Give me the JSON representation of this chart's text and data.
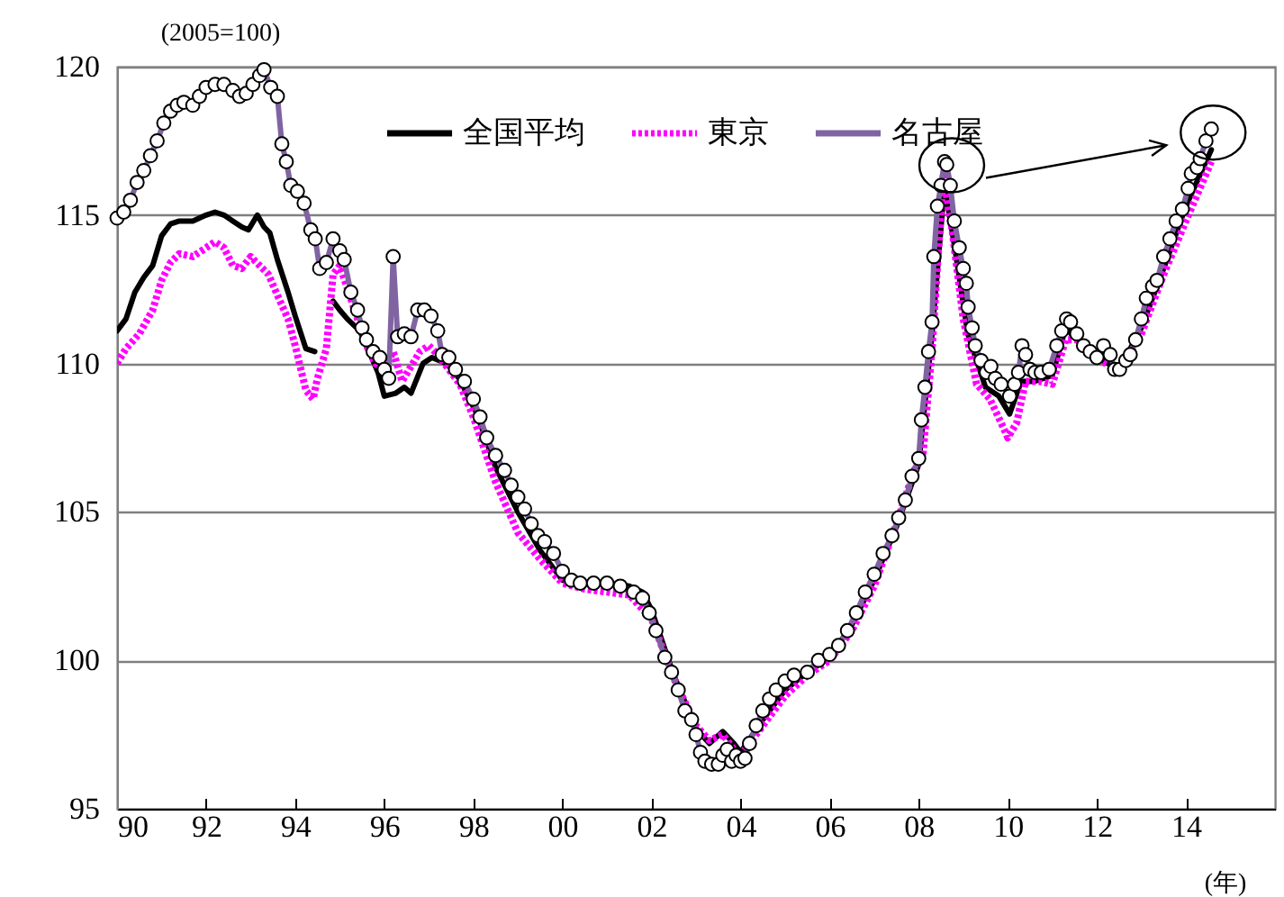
{
  "chart_data": {
    "type": "line",
    "ylabel": "(2005=100)",
    "xlabel": "(年)",
    "xlim": [
      1990,
      2016
    ],
    "ylim": [
      95,
      120
    ],
    "xticks": [
      {
        "value": 1990,
        "label": "90"
      },
      {
        "value": 1992,
        "label": "92"
      },
      {
        "value": 1994,
        "label": "94"
      },
      {
        "value": 1996,
        "label": "96"
      },
      {
        "value": 1998,
        "label": "98"
      },
      {
        "value": 2000,
        "label": "00"
      },
      {
        "value": 2002,
        "label": "02"
      },
      {
        "value": 2004,
        "label": "04"
      },
      {
        "value": 2006,
        "label": "06"
      },
      {
        "value": 2008,
        "label": "08"
      },
      {
        "value": 2010,
        "label": "10"
      },
      {
        "value": 2012,
        "label": "12"
      },
      {
        "value": 2014,
        "label": "14"
      }
    ],
    "yticks": [
      95,
      100,
      105,
      110,
      115,
      120
    ],
    "grid": "y",
    "legend": "top",
    "series": [
      {
        "name": "全国平均",
        "color": "#000000",
        "line_style": "solid",
        "marker": "none",
        "x": [
          1990.0,
          1990.2,
          1990.4,
          1990.6,
          1990.8,
          1991.0,
          1991.2,
          1991.4,
          1991.7,
          1992.0,
          1992.2,
          1992.4,
          1992.6,
          1992.8,
          1992.95,
          1993.15,
          1993.3,
          1993.43,
          1993.6,
          1993.84,
          1994.0,
          1994.24,
          1994.44,
          1994.6,
          1994.85,
          1995.0,
          1995.17,
          1995.45,
          1995.66,
          1995.86,
          1996.0,
          1996.26,
          1996.45,
          1996.6,
          1996.87,
          1997.07,
          1997.4,
          1997.68,
          1998.08,
          1998.5,
          1999.0,
          1999.5,
          2000.0,
          2000.5,
          2001.0,
          2001.5,
          2001.8,
          2002.0,
          2002.5,
          2003.0,
          2003.3,
          2003.6,
          2003.85,
          2004.0,
          2004.5,
          2005.0,
          2005.5,
          2006.0,
          2006.5,
          2007.0,
          2007.5,
          2008.0,
          2008.3,
          2008.58,
          2008.8,
          2009.1,
          2009.5,
          2009.8,
          2010.04,
          2010.3,
          2010.6,
          2011.0,
          2011.3,
          2011.6,
          2012.0,
          2012.5,
          2013.0,
          2013.5,
          2014.0,
          2014.57
        ],
        "values": [
          111.1,
          111.5,
          112.4,
          112.9,
          113.3,
          114.3,
          114.7,
          114.8,
          114.8,
          115.0,
          115.1,
          115.0,
          114.8,
          114.6,
          114.5,
          115.0,
          114.6,
          114.4,
          113.5,
          112.4,
          111.6,
          110.5,
          110.4,
          null,
          112.1,
          111.8,
          111.5,
          111.1,
          110.4,
          109.7,
          108.9,
          109.0,
          109.2,
          109.0,
          110.0,
          110.2,
          110.0,
          109.5,
          108.3,
          106.5,
          105.0,
          103.7,
          102.7,
          102.6,
          102.6,
          102.5,
          102.3,
          101.7,
          99.5,
          97.7,
          97.2,
          97.6,
          97.2,
          96.9,
          98.0,
          99.0,
          99.6,
          100.1,
          101.2,
          102.7,
          104.5,
          106.6,
          111.0,
          116.0,
          114.0,
          111.0,
          109.2,
          108.9,
          108.3,
          109.4,
          109.4,
          109.6,
          111.2,
          110.7,
          110.2,
          109.8,
          111.2,
          113.2,
          115.3,
          117.2
        ]
      },
      {
        "name": "東京",
        "color": "#ff00ff",
        "line_style": "dotted",
        "marker": "none",
        "x": [
          1990.0,
          1990.2,
          1990.5,
          1990.8,
          1991.0,
          1991.2,
          1991.4,
          1991.7,
          1992.0,
          1992.2,
          1992.4,
          1992.6,
          1992.8,
          1993.0,
          1993.2,
          1993.4,
          1993.6,
          1993.84,
          1994.0,
          1994.24,
          1994.4,
          1994.5,
          1994.7,
          1994.85,
          1995.0,
          1995.2,
          1995.4,
          1995.6,
          1995.8,
          1996.0,
          1996.2,
          1996.4,
          1996.6,
          1996.8,
          1997.0,
          1997.2,
          1997.4,
          1997.7,
          1998.0,
          1998.5,
          1999.0,
          1999.5,
          2000.0,
          2000.5,
          2001.0,
          2001.5,
          2002.0,
          2002.5,
          2003.0,
          2003.3,
          2003.6,
          2003.85,
          2004.0,
          2004.5,
          2005.0,
          2005.5,
          2006.0,
          2006.5,
          2007.0,
          2007.5,
          2007.9,
          2008.1,
          2008.3,
          2008.55,
          2008.75,
          2009.0,
          2009.3,
          2009.6,
          2009.85,
          2010.0,
          2010.2,
          2010.4,
          2010.7,
          2011.0,
          2011.3,
          2011.6,
          2012.0,
          2012.5,
          2013.0,
          2013.5,
          2014.0,
          2014.57
        ],
        "values": [
          110.0,
          110.5,
          111.0,
          111.8,
          112.8,
          113.4,
          113.7,
          113.6,
          113.9,
          114.1,
          113.9,
          113.3,
          113.2,
          113.6,
          113.3,
          113.0,
          112.3,
          111.5,
          110.6,
          109.1,
          108.8,
          109.5,
          110.5,
          113.0,
          113.3,
          112.4,
          111.5,
          110.6,
          110.0,
          109.8,
          110.4,
          109.4,
          109.9,
          110.4,
          110.6,
          110.3,
          109.9,
          109.3,
          108.2,
          106.0,
          104.3,
          103.4,
          102.6,
          102.4,
          102.3,
          102.2,
          101.4,
          99.4,
          97.8,
          97.3,
          97.5,
          97.0,
          96.8,
          97.8,
          98.8,
          99.5,
          100.0,
          101.0,
          102.5,
          104.6,
          106.4,
          107.0,
          110.5,
          116.3,
          114.5,
          111.5,
          109.3,
          108.8,
          108.0,
          107.5,
          108.0,
          109.4,
          109.4,
          109.3,
          110.8,
          110.8,
          110.2,
          109.7,
          111.0,
          113.0,
          114.8,
          116.8
        ]
      },
      {
        "name": "名古屋",
        "color": "#8064a2",
        "line_style": "solid",
        "marker": "circle",
        "x": [
          1990.0,
          1990.15,
          1990.3,
          1990.45,
          1990.6,
          1990.75,
          1990.9,
          1991.05,
          1991.2,
          1991.35,
          1991.5,
          1991.7,
          1991.85,
          1992.0,
          1992.2,
          1992.4,
          1992.6,
          1992.75,
          1992.9,
          1993.05,
          1993.2,
          1993.3,
          1993.45,
          1993.6,
          1993.7,
          1993.8,
          1993.9,
          1994.05,
          1994.2,
          1994.35,
          1994.45,
          1994.55,
          1994.7,
          1994.85,
          1995.0,
          1995.1,
          1995.25,
          1995.4,
          1995.5,
          1995.6,
          1995.75,
          1995.9,
          1996.0,
          1996.1,
          1996.2,
          1996.3,
          1996.45,
          1996.6,
          1996.75,
          1996.9,
          1997.05,
          1997.2,
          1997.3,
          1997.45,
          1997.6,
          1997.8,
          1998.0,
          1998.15,
          1998.3,
          1998.5,
          1998.7,
          1998.85,
          1999.0,
          1999.15,
          1999.3,
          1999.45,
          1999.6,
          1999.8,
          2000.0,
          2000.2,
          2000.4,
          2000.7,
          2001.0,
          2001.3,
          2001.6,
          2001.8,
          2001.95,
          2002.1,
          2002.3,
          2002.45,
          2002.6,
          2002.75,
          2002.9,
          2003.0,
          2003.1,
          2003.2,
          2003.35,
          2003.5,
          2003.6,
          2003.7,
          2003.8,
          2003.9,
          2004.0,
          2004.1,
          2004.2,
          2004.35,
          2004.5,
          2004.65,
          2004.8,
          2005.0,
          2005.2,
          2005.5,
          2005.75,
          2006.0,
          2006.2,
          2006.4,
          2006.6,
          2006.8,
          2007.0,
          2007.2,
          2007.4,
          2007.55,
          2007.7,
          2007.85,
          2008.0,
          2008.06,
          2008.14,
          2008.22,
          2008.3,
          2008.34,
          2008.42,
          2008.5,
          2008.58,
          2008.63,
          2008.71,
          2008.8,
          2008.91,
          2009.0,
          2009.07,
          2009.11,
          2009.2,
          2009.27,
          2009.4,
          2009.52,
          2009.62,
          2009.72,
          2009.85,
          2010.04,
          2010.15,
          2010.24,
          2010.32,
          2010.4,
          2010.5,
          2010.61,
          2010.75,
          2010.93,
          2011.1,
          2011.21,
          2011.32,
          2011.41,
          2011.55,
          2011.7,
          2011.85,
          2012.0,
          2012.15,
          2012.3,
          2012.4,
          2012.51,
          2012.65,
          2012.75,
          2012.87,
          2013.0,
          2013.11,
          2013.25,
          2013.35,
          2013.5,
          2013.64,
          2013.78,
          2013.92,
          2014.05,
          2014.12,
          2014.25,
          2014.32,
          2014.45,
          2014.57
        ],
        "values": [
          114.9,
          115.1,
          115.5,
          116.1,
          116.5,
          117.0,
          117.5,
          118.1,
          118.5,
          118.7,
          118.8,
          118.7,
          119.0,
          119.3,
          119.4,
          119.4,
          119.2,
          119.0,
          119.1,
          119.4,
          119.7,
          119.9,
          119.3,
          119.0,
          117.4,
          116.8,
          116.0,
          115.8,
          115.4,
          114.5,
          114.2,
          113.2,
          113.4,
          114.2,
          113.8,
          113.5,
          112.4,
          111.8,
          111.2,
          110.8,
          110.4,
          110.2,
          109.8,
          109.5,
          113.6,
          110.9,
          111.0,
          110.9,
          111.8,
          111.8,
          111.6,
          111.1,
          110.3,
          110.2,
          109.8,
          109.4,
          108.8,
          108.2,
          107.5,
          106.9,
          106.4,
          105.9,
          105.5,
          105.1,
          104.6,
          104.2,
          104.0,
          103.6,
          103.0,
          102.7,
          102.6,
          102.6,
          102.6,
          102.5,
          102.3,
          102.1,
          101.6,
          101.0,
          100.1,
          99.6,
          99.0,
          98.3,
          98.0,
          97.5,
          96.9,
          96.6,
          96.5,
          96.5,
          96.8,
          97.0,
          96.6,
          96.8,
          96.6,
          96.7,
          97.2,
          97.8,
          98.3,
          98.7,
          99.0,
          99.3,
          99.5,
          99.6,
          100.0,
          100.2,
          100.5,
          101.0,
          101.6,
          102.3,
          102.9,
          103.6,
          104.2,
          104.8,
          105.4,
          106.2,
          106.8,
          108.1,
          109.2,
          110.4,
          111.4,
          113.6,
          115.3,
          116.0,
          116.8,
          116.7,
          116.0,
          114.8,
          113.9,
          113.2,
          112.7,
          111.9,
          111.2,
          110.6,
          110.1,
          109.7,
          109.9,
          109.5,
          109.3,
          108.9,
          109.3,
          109.7,
          110.6,
          110.3,
          109.8,
          109.7,
          109.7,
          109.8,
          110.6,
          111.1,
          111.5,
          111.4,
          111.0,
          110.6,
          110.4,
          110.2,
          110.6,
          110.3,
          109.8,
          109.8,
          110.1,
          110.3,
          110.8,
          111.5,
          112.2,
          112.6,
          112.8,
          113.6,
          114.2,
          114.8,
          115.2,
          115.9,
          116.4,
          116.6,
          116.9,
          117.5,
          117.9
        ]
      }
    ]
  }
}
